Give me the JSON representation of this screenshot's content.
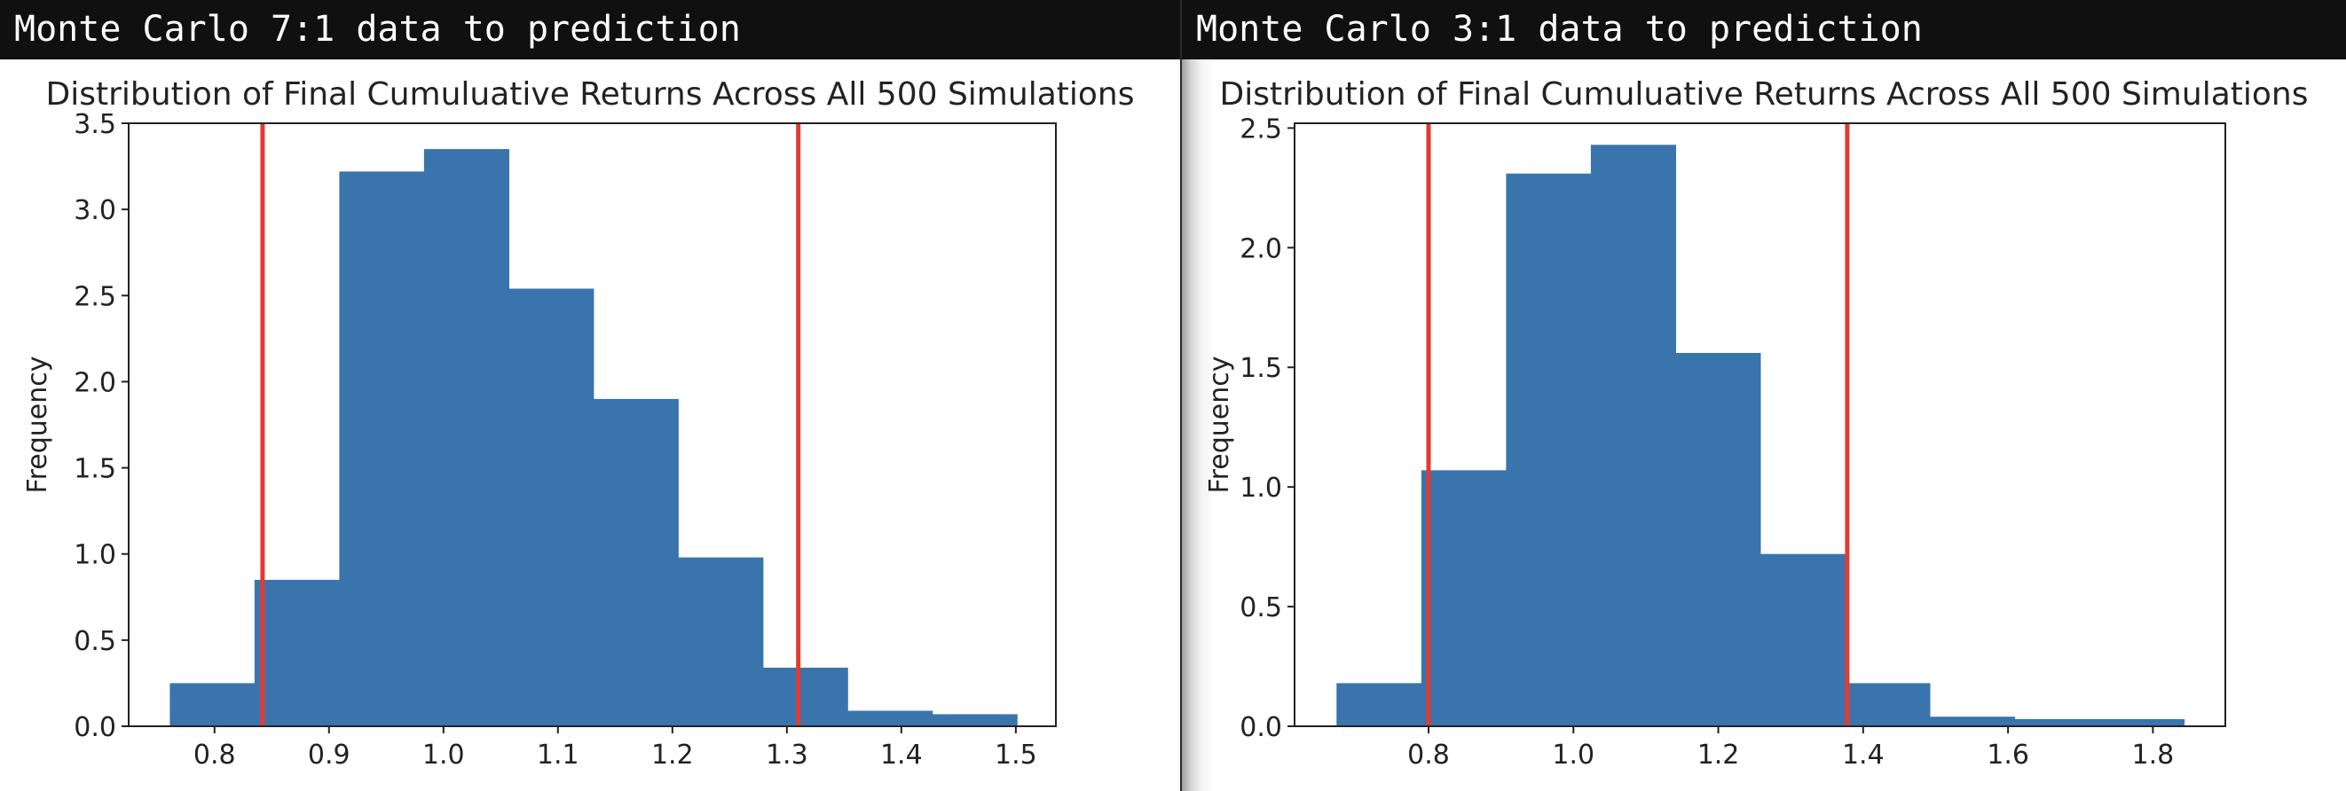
{
  "windows": [
    {
      "title": "Monte Carlo 7:1 data to prediction"
    },
    {
      "title": "Monte Carlo 3:1 data to prediction"
    }
  ],
  "chart_data": [
    {
      "type": "bar",
      "title": "Distribution of Final Cumuluative Returns Across All 500 Simulations",
      "xlabel": "",
      "ylabel": "Frequency",
      "xlim": [
        0.725,
        1.535
      ],
      "ylim": [
        0,
        3.5
      ],
      "xticks": [
        0.8,
        0.9,
        1.0,
        1.1,
        1.2,
        1.3,
        1.4,
        1.5
      ],
      "xtick_labels": [
        "0.8",
        "0.9",
        "1.0",
        "1.1",
        "1.2",
        "1.3",
        "1.4",
        "1.5"
      ],
      "yticks": [
        0.0,
        0.5,
        1.0,
        1.5,
        2.0,
        2.5,
        3.0,
        3.5
      ],
      "ytick_labels": [
        "0.0",
        "0.5",
        "1.0",
        "1.5",
        "2.0",
        "2.5",
        "3.0",
        "3.5"
      ],
      "bins": [
        {
          "x0": 0.761,
          "x1": 0.835,
          "value": 0.25
        },
        {
          "x0": 0.835,
          "x1": 0.909,
          "value": 0.85
        },
        {
          "x0": 0.909,
          "x1": 0.983,
          "value": 3.22
        },
        {
          "x0": 0.983,
          "x1": 1.057,
          "value": 3.35
        },
        {
          "x0": 1.057,
          "x1": 1.131,
          "value": 2.54
        },
        {
          "x0": 1.131,
          "x1": 1.205,
          "value": 1.9
        },
        {
          "x0": 1.205,
          "x1": 1.279,
          "value": 0.98
        },
        {
          "x0": 1.279,
          "x1": 1.353,
          "value": 0.34
        },
        {
          "x0": 1.353,
          "x1": 1.427,
          "value": 0.09
        },
        {
          "x0": 1.427,
          "x1": 1.501,
          "value": 0.07
        }
      ],
      "vlines": [
        0.842,
        1.31
      ],
      "bar_color": "#3a74ad",
      "line_color": "#e03b32",
      "grid": false
    },
    {
      "type": "bar",
      "title": "Distribution of Final Cumuluative Returns Across All 500 Simulations",
      "xlabel": "",
      "ylabel": "Frequency",
      "xlim": [
        0.615,
        1.9
      ],
      "ylim": [
        0,
        2.52
      ],
      "xticks": [
        0.8,
        1.0,
        1.2,
        1.4,
        1.6,
        1.8
      ],
      "xtick_labels": [
        "0.8",
        "1.0",
        "1.2",
        "1.4",
        "1.6",
        "1.8"
      ],
      "yticks": [
        0.0,
        0.5,
        1.0,
        1.5,
        2.0,
        2.5
      ],
      "ytick_labels": [
        "0.0",
        "0.5",
        "1.0",
        "1.5",
        "2.0",
        "2.5"
      ],
      "bins": [
        {
          "x0": 0.673,
          "x1": 0.79,
          "value": 0.18
        },
        {
          "x0": 0.79,
          "x1": 0.907,
          "value": 1.07
        },
        {
          "x0": 0.907,
          "x1": 1.024,
          "value": 2.31
        },
        {
          "x0": 1.024,
          "x1": 1.141,
          "value": 2.43
        },
        {
          "x0": 1.141,
          "x1": 1.258,
          "value": 1.56
        },
        {
          "x0": 1.258,
          "x1": 1.375,
          "value": 0.72
        },
        {
          "x0": 1.375,
          "x1": 1.492,
          "value": 0.18
        },
        {
          "x0": 1.492,
          "x1": 1.609,
          "value": 0.04
        },
        {
          "x0": 1.609,
          "x1": 1.726,
          "value": 0.03
        },
        {
          "x0": 1.726,
          "x1": 1.843,
          "value": 0.03
        }
      ],
      "vlines": [
        0.8,
        1.378
      ],
      "bar_color": "#3a74ad",
      "line_color": "#e03b32",
      "grid": false
    }
  ]
}
